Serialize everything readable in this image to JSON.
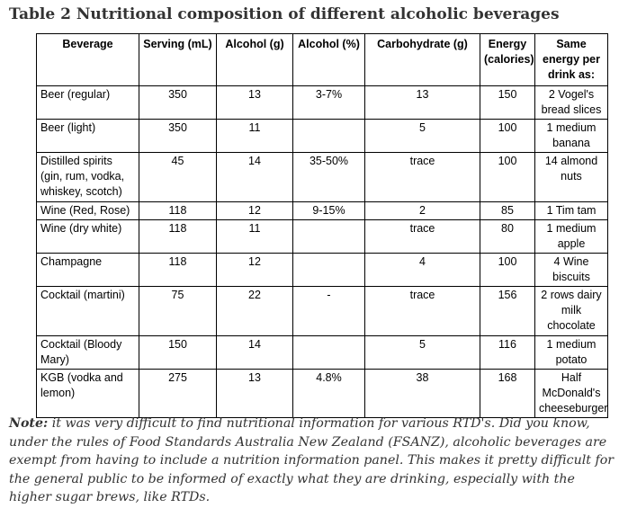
{
  "title": "Table 2 Nutritional composition of different alcoholic beverages",
  "headers": [
    "Beverage",
    "Serving (mL)",
    "Alcohol (g)",
    "Alcohol (%)",
    "Carbohydrate (g)",
    "Energy (calories)",
    "Same energy per drink as:"
  ],
  "rows": [
    {
      "beverage": "Beer (regular)",
      "serving": "350",
      "alcohol_g": "13",
      "alcohol_pct": "3-7%",
      "carb": "13",
      "energy": "150",
      "same": "2 Vogel's bread slices"
    },
    {
      "beverage": "Beer (light)",
      "serving": "350",
      "alcohol_g": "11",
      "alcohol_pct": "",
      "carb": "5",
      "energy": "100",
      "same": "1 medium banana"
    },
    {
      "beverage": "Distilled spirits (gin, rum, vodka, whiskey, scotch)",
      "serving": "45",
      "alcohol_g": "14",
      "alcohol_pct": "35-50%",
      "carb": "trace",
      "energy": "100",
      "same": "14 almond nuts"
    },
    {
      "beverage": "Wine (Red, Rose)",
      "serving": "118",
      "alcohol_g": "12",
      "alcohol_pct": "9-15%",
      "carb": "2",
      "energy": "85",
      "same": "1 Tim tam"
    },
    {
      "beverage": "Wine (dry white)",
      "serving": "118",
      "alcohol_g": "11",
      "alcohol_pct": "",
      "carb": "trace",
      "energy": "80",
      "same": "1 medium apple"
    },
    {
      "beverage": "Champagne",
      "serving": "118",
      "alcohol_g": "12",
      "alcohol_pct": "",
      "carb": "4",
      "energy": "100",
      "same": "4 Wine biscuits"
    },
    {
      "beverage": "Cocktail (martini)",
      "serving": "75",
      "alcohol_g": "22",
      "alcohol_pct": "-",
      "carb": "trace",
      "energy": "156",
      "same": "2 rows dairy milk chocolate"
    },
    {
      "beverage": "Cocktail (Bloody Mary)",
      "serving": "150",
      "alcohol_g": "14",
      "alcohol_pct": "",
      "carb": "5",
      "energy": "116",
      "same": "1 medium potato"
    },
    {
      "beverage": "KGB (vodka and lemon)",
      "serving": "275",
      "alcohol_g": "13",
      "alcohol_pct": "4.8%",
      "carb": "38",
      "energy": "168",
      "same": "Half McDonald's cheeseburger"
    }
  ],
  "note": {
    "label": "Note:",
    "text": " it was very difficult to find nutritional information for various RTD's. Did you know, under the rules of Food Standards Australia New Zealand (FSANZ), alcoholic beverages are exempt from having to include a nutrition information panel. This makes it pretty difficult for the general public to be informed of exactly what they are drinking, especially with the higher sugar brews, like RTDs."
  }
}
